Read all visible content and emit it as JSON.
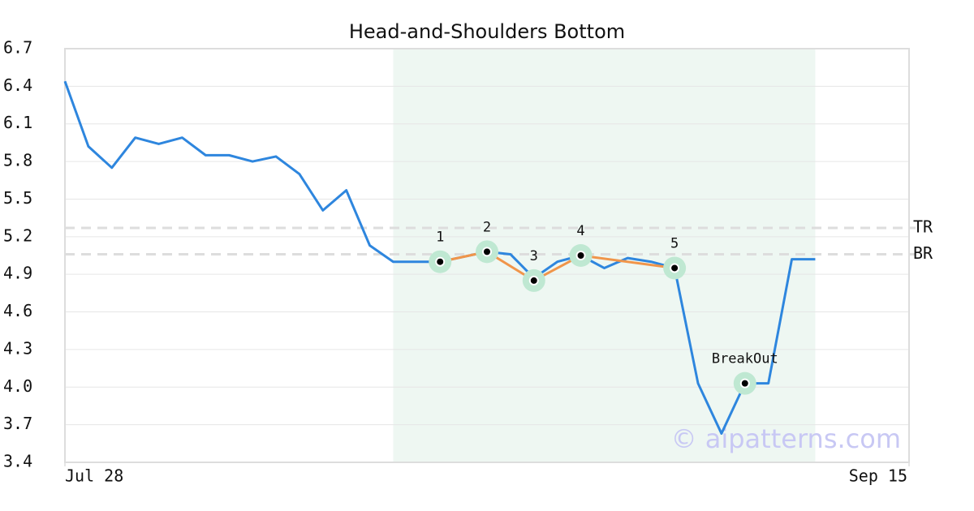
{
  "chart_data": {
    "type": "line",
    "title": "Head-and-Shoulders Bottom",
    "x": [
      0,
      1,
      2,
      3,
      4,
      5,
      6,
      7,
      8,
      9,
      10,
      11,
      12,
      13,
      14,
      15,
      16,
      17,
      18,
      19,
      20,
      21,
      22,
      23,
      24,
      25,
      26,
      27,
      28,
      29,
      30,
      31,
      32
    ],
    "series": [
      {
        "color": "#2e86de",
        "values": [
          6.44,
          5.92,
          5.75,
          5.99,
          5.94,
          5.99,
          5.85,
          5.85,
          5.8,
          5.84,
          5.7,
          5.41,
          5.57,
          5.13,
          5.0,
          5.0,
          5.0,
          5.04,
          5.08,
          5.06,
          4.87,
          5.0,
          5.05,
          4.95,
          5.03,
          5.0,
          4.95,
          4.03,
          3.63,
          4.03,
          4.03,
          5.02,
          5.02
        ]
      }
    ],
    "xlim": [
      0,
      36
    ],
    "xticks": [
      {
        "value": 0,
        "label": "Jul 28"
      },
      {
        "value": 36,
        "label": "Sep 15"
      }
    ],
    "ylim": [
      3.4,
      6.7
    ],
    "yticks": [
      3.4,
      3.7,
      {
        "value": 4,
        "label": "4.0"
      },
      4.3,
      4.6,
      4.9,
      5.2,
      5.5,
      5.8,
      6.1,
      6.4,
      6.7
    ],
    "grid": true,
    "pattern": {
      "color": "#f0954a",
      "region": [
        14,
        32
      ],
      "points": [
        {
          "label": "1",
          "x": 16,
          "value": 5.0
        },
        {
          "label": "2",
          "x": 18,
          "value": 5.08
        },
        {
          "label": "3",
          "x": 20,
          "value": 4.85
        },
        {
          "label": "4",
          "x": 22,
          "value": 5.05
        },
        {
          "label": "5",
          "x": 26,
          "value": 4.95
        }
      ],
      "breakout": {
        "label": "BreakOut",
        "x": 29,
        "value": 4.03
      }
    },
    "levels": [
      {
        "label": "TR",
        "value": 5.27
      },
      {
        "label": "BR",
        "value": 5.06
      }
    ],
    "watermark": "© aipatterns.com"
  }
}
